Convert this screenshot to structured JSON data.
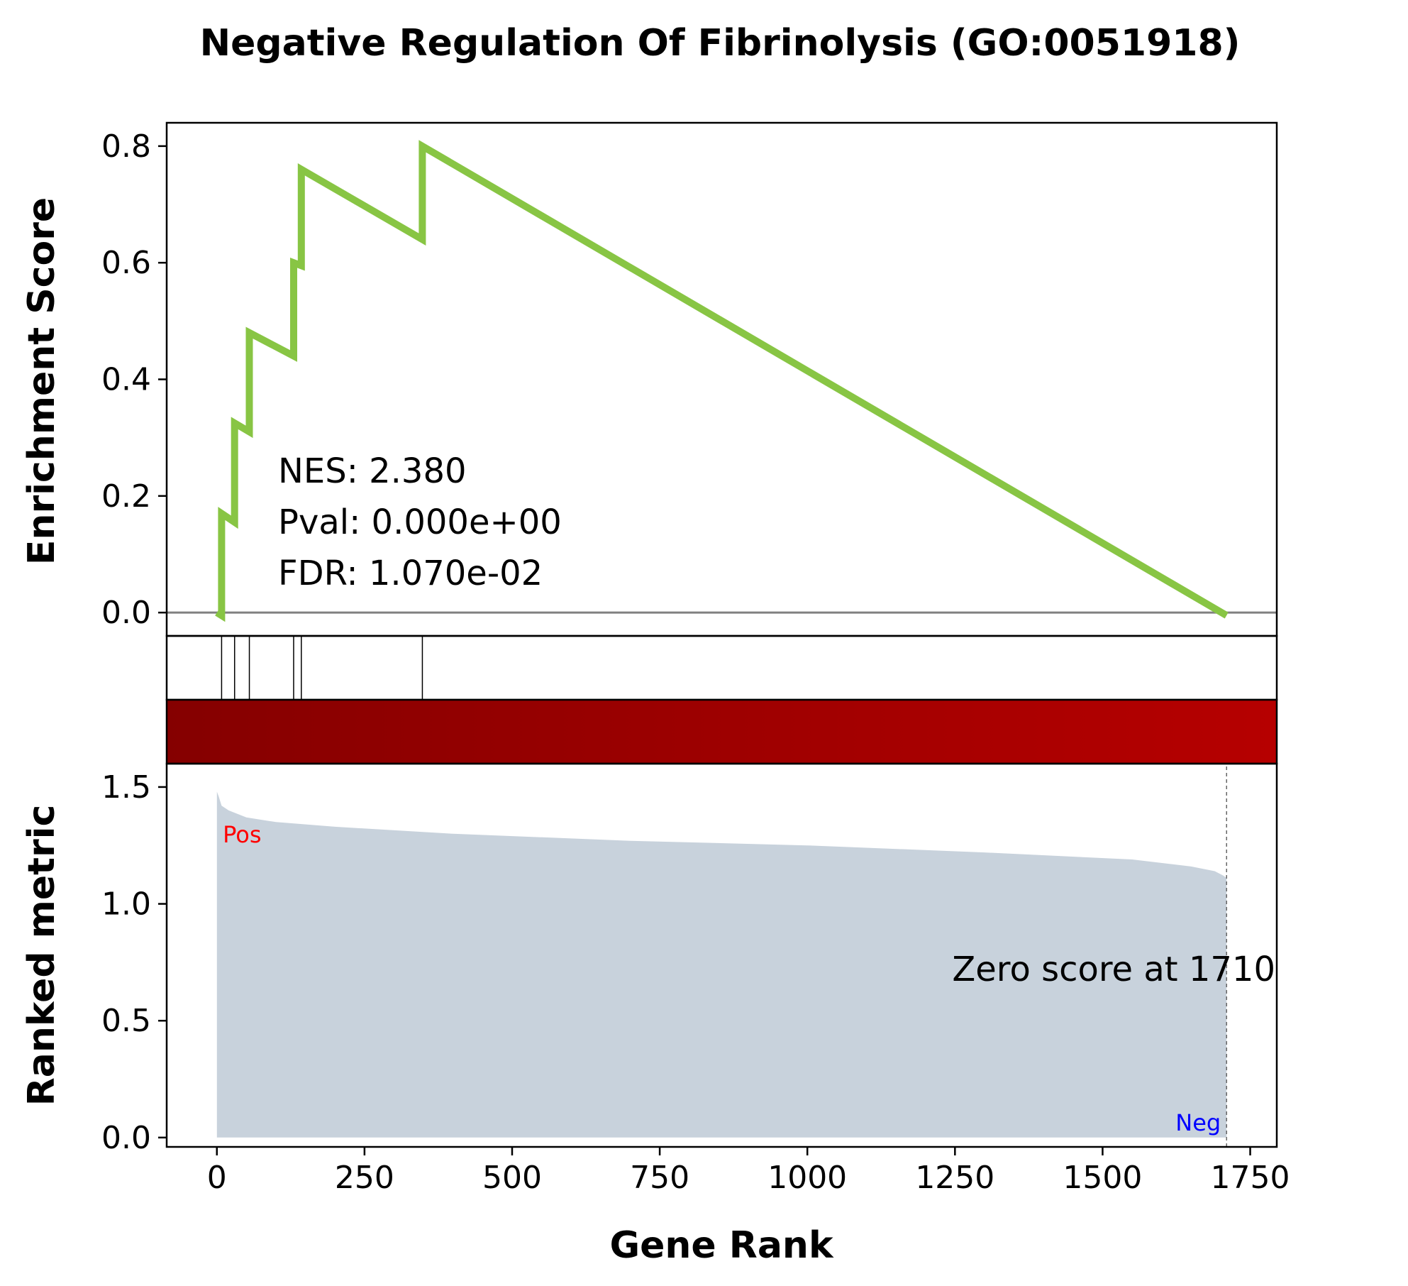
{
  "chart_data": {
    "type": "line",
    "title": "Negative Regulation Of Fibrinolysis (GO:0051918)",
    "xlabel": "Gene Rank",
    "xlim": [
      -85,
      1795
    ],
    "xticks": [
      0,
      250,
      500,
      750,
      1000,
      1250,
      1500,
      1750
    ],
    "es_panel": {
      "ylabel": "Enrichment Score",
      "ylim": [
        -0.04,
        0.84
      ],
      "yticks": [
        "0.0",
        "0.2",
        "0.4",
        "0.6",
        "0.8"
      ],
      "ytick_values": [
        0.0,
        0.2,
        0.4,
        0.6,
        0.8
      ],
      "line_color": "#88c544",
      "zero_line_color": "#808080",
      "series": [
        {
          "x": 0,
          "y": 0.0
        },
        {
          "x": 8,
          "y": -0.005
        },
        {
          "x": 8,
          "y": 0.17
        },
        {
          "x": 30,
          "y": 0.155
        },
        {
          "x": 30,
          "y": 0.325
        },
        {
          "x": 55,
          "y": 0.31
        },
        {
          "x": 55,
          "y": 0.48
        },
        {
          "x": 130,
          "y": 0.44
        },
        {
          "x": 130,
          "y": 0.6
        },
        {
          "x": 143,
          "y": 0.595
        },
        {
          "x": 143,
          "y": 0.76
        },
        {
          "x": 348,
          "y": 0.64
        },
        {
          "x": 348,
          "y": 0.8
        },
        {
          "x": 1710,
          "y": -0.005
        }
      ],
      "stats": {
        "nes": "NES: 2.380",
        "pval": "Pval: 0.000e+00",
        "fdr": "FDR: 1.070e-02"
      }
    },
    "hits": [
      8,
      30,
      55,
      130,
      143,
      348
    ],
    "color_bar": {
      "start_color": "#850000",
      "end_color": "#b60000"
    },
    "rank_panel": {
      "ylabel": "Ranked metric",
      "ylim": [
        -0.04,
        1.6
      ],
      "yticks": [
        "0.0",
        "0.5",
        "1.0",
        "1.5"
      ],
      "ytick_values": [
        0.0,
        0.5,
        1.0,
        1.5
      ],
      "fill_color": "#c8d2dc",
      "metric": [
        {
          "x": 0,
          "y": 1.48
        },
        {
          "x": 3,
          "y": 1.46
        },
        {
          "x": 8,
          "y": 1.42
        },
        {
          "x": 20,
          "y": 1.4
        },
        {
          "x": 50,
          "y": 1.37
        },
        {
          "x": 100,
          "y": 1.35
        },
        {
          "x": 200,
          "y": 1.33
        },
        {
          "x": 400,
          "y": 1.3
        },
        {
          "x": 700,
          "y": 1.27
        },
        {
          "x": 1000,
          "y": 1.25
        },
        {
          "x": 1300,
          "y": 1.22
        },
        {
          "x": 1550,
          "y": 1.19
        },
        {
          "x": 1650,
          "y": 1.16
        },
        {
          "x": 1690,
          "y": 1.14
        },
        {
          "x": 1705,
          "y": 1.12
        },
        {
          "x": 1710,
          "y": 1.11
        }
      ],
      "zero_score_rank": 1710,
      "zero_score_text": "Zero score at 1710",
      "pos_label": "Pos",
      "neg_label": "Neg"
    }
  }
}
